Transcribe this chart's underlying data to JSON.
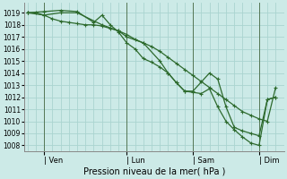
{
  "bg_color": "#cceae7",
  "grid_color": "#aad4d0",
  "line_color": "#2d6a2d",
  "marker_color": "#2d6a2d",
  "xlabel": "Pression niveau de la mer( hPa )",
  "ylim": [
    1007.5,
    1019.8
  ],
  "yticks": [
    1008,
    1009,
    1010,
    1011,
    1012,
    1013,
    1014,
    1015,
    1016,
    1017,
    1018,
    1019
  ],
  "xtick_labels": [
    "| Ven",
    "| Lun",
    "| Sam",
    "| Dim"
  ],
  "xtick_positions": [
    1.0,
    6.0,
    10.0,
    14.0
  ],
  "xlim": [
    -0.2,
    15.5
  ],
  "vlines": [
    1.0,
    6.0,
    10.0,
    14.0
  ],
  "series1_x": [
    0.0,
    0.5,
    1.0,
    1.5,
    2.0,
    2.5,
    3.0,
    3.5,
    4.0,
    4.5,
    5.0,
    5.5,
    6.0,
    6.5,
    7.0,
    7.5,
    8.0,
    8.5,
    9.0,
    9.5,
    10.0,
    10.5,
    11.0,
    11.5,
    12.0,
    12.5,
    13.0,
    13.5,
    14.0,
    14.5,
    15.0
  ],
  "series1_y": [
    1019.0,
    1019.0,
    1018.8,
    1018.5,
    1018.3,
    1018.2,
    1018.1,
    1018.0,
    1018.0,
    1017.9,
    1017.7,
    1017.5,
    1017.2,
    1016.8,
    1016.5,
    1016.2,
    1015.8,
    1015.3,
    1014.8,
    1014.3,
    1013.8,
    1013.3,
    1012.8,
    1012.3,
    1011.8,
    1011.3,
    1010.8,
    1010.5,
    1010.2,
    1010.0,
    1012.8
  ],
  "series2_x": [
    0.0,
    1.0,
    2.0,
    3.0,
    4.0,
    4.5,
    5.0,
    5.5,
    6.0,
    6.5,
    7.0,
    7.5,
    8.0,
    8.5,
    9.0,
    9.5,
    10.0,
    10.5,
    11.0,
    11.5,
    12.0,
    12.5,
    13.0,
    13.5,
    14.0,
    14.5,
    15.0
  ],
  "series2_y": [
    1019.0,
    1019.1,
    1019.2,
    1019.1,
    1018.2,
    1018.8,
    1018.0,
    1017.4,
    1016.5,
    1016.0,
    1015.2,
    1014.9,
    1014.5,
    1014.0,
    1013.2,
    1012.5,
    1012.4,
    1012.3,
    1012.7,
    1011.2,
    1010.0,
    1009.3,
    1008.7,
    1008.2,
    1008.0,
    1011.8,
    1012.0
  ],
  "series3_x": [
    0.0,
    1.0,
    2.0,
    3.0,
    4.5,
    5.5,
    6.0,
    7.0,
    8.0,
    8.5,
    9.0,
    9.5,
    10.0,
    11.0,
    11.5,
    12.0,
    12.5,
    13.0,
    13.5,
    14.0,
    14.5,
    15.0
  ],
  "series3_y": [
    1019.0,
    1018.8,
    1019.0,
    1019.0,
    1018.0,
    1017.5,
    1017.0,
    1016.5,
    1015.0,
    1014.0,
    1013.2,
    1012.5,
    1012.5,
    1014.0,
    1013.5,
    1011.2,
    1009.5,
    1009.2,
    1009.0,
    1008.8,
    1011.8,
    1012.0
  ]
}
